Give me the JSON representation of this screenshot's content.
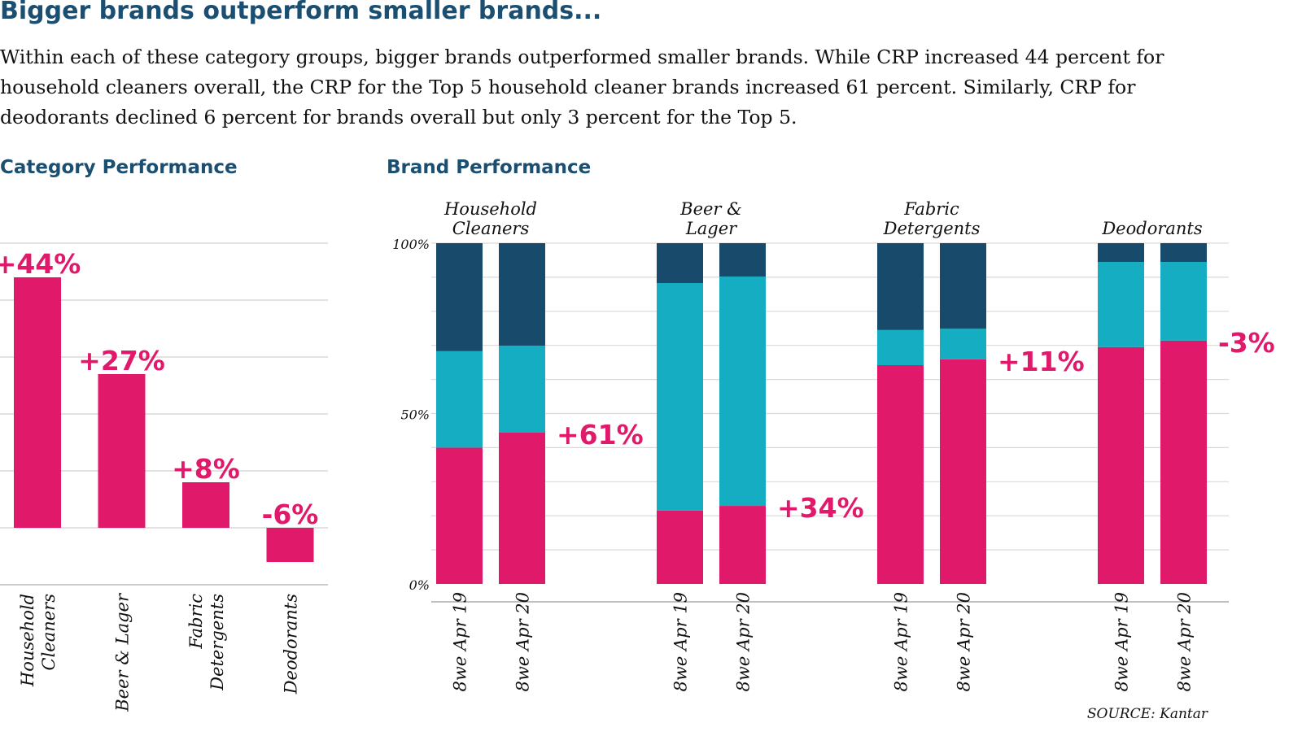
{
  "title": "Bigger brands outperform smaller brands...",
  "description": "Within each of these category groups, bigger brands outperformed smaller brands. While CRP increased 44 percent for household cleaners overall, the CRP for the Top 5 household cleaner brands increased 61 percent. Similarly, CRP for deodorants declined 6 percent for brands overall but only 3 percent for the Top 5.",
  "source": "SOURCE: Kantar",
  "colors": {
    "pink": "#E0196A",
    "teal": "#14ADC1",
    "navy": "#174A6B",
    "heading": "#1B4F72",
    "grid": "#d9d9d9"
  },
  "chart_data": [
    {
      "type": "bar",
      "title": "Category Performance",
      "categories": [
        [
          "Household",
          "Cleaners"
        ],
        [
          "Beer & Lager"
        ],
        [
          "Fabric",
          "Detergents"
        ],
        [
          "Deodorants"
        ]
      ],
      "values": [
        44,
        27,
        8,
        -6
      ],
      "data_labels": [
        "+44%",
        "+27%",
        "+8%",
        "-6%"
      ],
      "ylim": [
        -10,
        50
      ],
      "grid": true,
      "gridlines": [
        -10,
        0,
        10,
        20,
        30,
        40,
        50
      ]
    },
    {
      "type": "stacked-bar",
      "title": "Brand Performance",
      "yticks": [
        {
          "value": 0,
          "label": "0%"
        },
        {
          "value": 50,
          "label": "50%"
        },
        {
          "value": 100,
          "label": "100%"
        }
      ],
      "ylim": [
        0,
        100
      ],
      "grid": true,
      "groups": [
        {
          "name": [
            "Household",
            "Cleaners"
          ],
          "change": "+61%",
          "bars": [
            {
              "label": "8we Apr 19",
              "pink": 40,
              "teal": 28.3,
              "navy": 31.7
            },
            {
              "label": "8we Apr 20",
              "pink": 44.4,
              "teal": 25.5,
              "navy": 30.1
            }
          ]
        },
        {
          "name": [
            "Beer &",
            "Lager"
          ],
          "change": "+34%",
          "bars": [
            {
              "label": "8we Apr 19",
              "pink": 21.5,
              "teal": 66.8,
              "navy": 11.7
            },
            {
              "label": "8we Apr 20",
              "pink": 22.9,
              "teal": 67.3,
              "navy": 9.8
            }
          ]
        },
        {
          "name": [
            "Fabric",
            "Detergents"
          ],
          "change": "+11%",
          "bars": [
            {
              "label": "8we Apr 19",
              "pink": 64.2,
              "teal": 10.3,
              "navy": 25.5
            },
            {
              "label": "8we Apr 20",
              "pink": 65.9,
              "teal": 9.0,
              "navy": 25.1
            }
          ]
        },
        {
          "name": [
            "Deodorants"
          ],
          "change": "-3%",
          "bars": [
            {
              "label": "8we Apr 19",
              "pink": 69.5,
              "teal": 25.0,
              "navy": 5.5
            },
            {
              "label": "8we Apr 20",
              "pink": 71.4,
              "teal": 23.1,
              "navy": 5.5
            }
          ]
        }
      ]
    }
  ]
}
